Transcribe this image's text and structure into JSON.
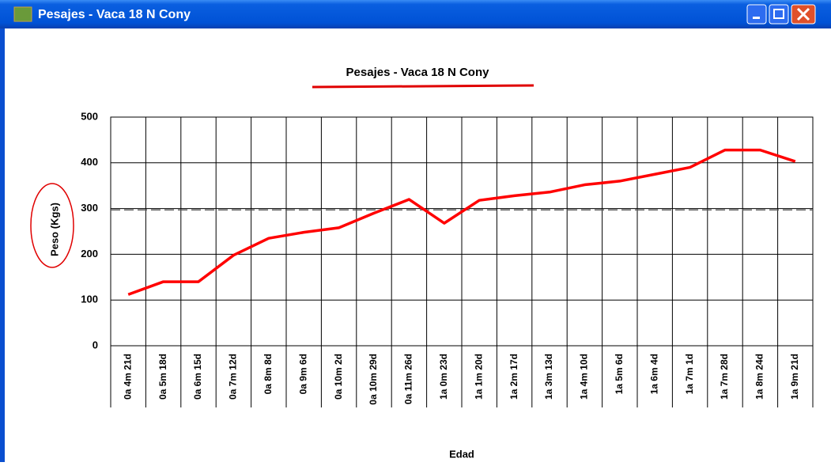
{
  "window": {
    "title": "Pesajes - Vaca 18 N Cony"
  },
  "chart_data": {
    "type": "line",
    "title": "Pesajes - Vaca 18 N Cony",
    "x_label": "Edad",
    "y_label": "Peso (Kgs)",
    "categories": [
      "0a 4m 21d",
      "0a 5m 18d",
      "0a 6m 15d",
      "0a 7m 12d",
      "0a 8m 8d",
      "0a 9m 6d",
      "0a 10m 2d",
      "0a 10m 29d",
      "0a 11m 26d",
      "1a 0m 23d",
      "1a 1m 20d",
      "1a 2m 17d",
      "1a 3m 13d",
      "1a 4m 10d",
      "1a 5m 6d",
      "1a 6m 4d",
      "1a 7m 1d",
      "1a 7m 28d",
      "1a 8m 24d",
      "1a 9m 21d"
    ],
    "values": [
      112,
      140,
      140,
      198,
      235,
      248,
      258,
      290,
      320,
      268,
      318,
      328,
      336,
      352,
      360,
      375,
      390,
      428,
      428,
      403
    ],
    "color": "#ff0000",
    "reference_line": 297,
    "ylim": [
      0,
      500
    ],
    "yticks": [
      0,
      100,
      200,
      300,
      400,
      500
    ],
    "grid": true
  }
}
